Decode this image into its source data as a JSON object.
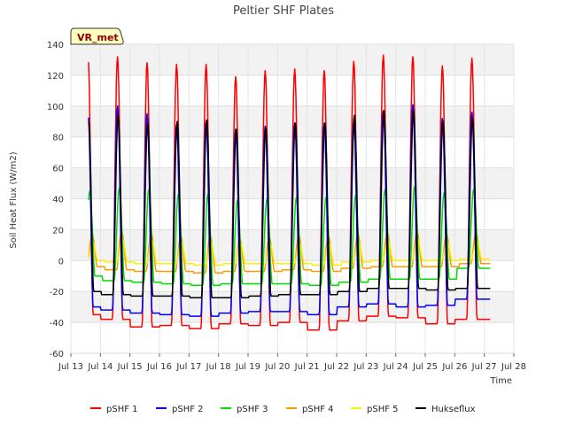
{
  "chart_data": {
    "type": "line",
    "title": "Peltier SHF Plates",
    "xlabel": "Time",
    "ylabel": "Soil Heat Flux (W/m2)",
    "badge": "VR_met",
    "ylim": [
      -60,
      140
    ],
    "yticks": [
      -60,
      -40,
      -20,
      0,
      20,
      40,
      60,
      80,
      100,
      120,
      140
    ],
    "xlim": [
      13,
      28
    ],
    "xticks": [
      "Jul 13",
      "Jul 14",
      "Jul 15",
      "Jul 16",
      "Jul 17",
      "Jul 18",
      "Jul 19",
      "Jul 20",
      "Jul 21",
      "Jul 22",
      "Jul 23",
      "Jul 24",
      "Jul 25",
      "Jul 26",
      "Jul 27",
      "Jul 28"
    ],
    "x_unit": "day of July",
    "grid": true,
    "legend_position": "bottom",
    "day_peaks": [
      "Jul 13",
      "Jul 14",
      "Jul 15",
      "Jul 16",
      "Jul 17",
      "Jul 18",
      "Jul 19",
      "Jul 20",
      "Jul 21",
      "Jul 22",
      "Jul 23",
      "Jul 24",
      "Jul 25",
      "Jul 26"
    ],
    "series": [
      {
        "name": "pSHF 1",
        "color": "#ff0000",
        "max": [
          133,
          132,
          128,
          127,
          127,
          119,
          123,
          124,
          123,
          129,
          133,
          132,
          126,
          131
        ],
        "min": [
          -35,
          -38,
          -43,
          -42,
          -44,
          -41,
          -42,
          -40,
          -45,
          -39,
          -36,
          -37,
          -41,
          -38
        ]
      },
      {
        "name": "pSHF 2",
        "color": "#0000ff",
        "max": [
          96,
          100,
          95,
          88,
          90,
          85,
          87,
          89,
          89,
          90,
          97,
          101,
          92,
          96
        ],
        "min": [
          -30,
          -32,
          -34,
          -35,
          -36,
          -34,
          -33,
          -33,
          -35,
          -30,
          -28,
          -30,
          -29,
          -25
        ]
      },
      {
        "name": "pSHF 3",
        "color": "#00dd00",
        "max": [
          45,
          47,
          46,
          43,
          43,
          39,
          40,
          41,
          41,
          42,
          46,
          48,
          44,
          46
        ],
        "min": [
          -10,
          -13,
          -14,
          -15,
          -16,
          -15,
          -15,
          -15,
          -16,
          -14,
          -12,
          -12,
          -12,
          -5
        ]
      },
      {
        "name": "pSHF 4",
        "color": "#ff9900",
        "max": [
          17,
          19,
          18,
          16,
          16,
          14,
          15,
          16,
          16,
          17,
          18,
          19,
          17,
          18
        ],
        "min": [
          -4,
          -6,
          -7,
          -7,
          -8,
          -7,
          -7,
          -6,
          -7,
          -5,
          -4,
          -4,
          -4,
          -2
        ]
      },
      {
        "name": "pSHF 5",
        "color": "#ffee00",
        "max": [
          12,
          14,
          13,
          12,
          12,
          11,
          11,
          11,
          11,
          12,
          13,
          14,
          12,
          13
        ],
        "min": [
          0,
          -1,
          -2,
          -2,
          -3,
          -2,
          -2,
          -2,
          -3,
          -1,
          0,
          0,
          0,
          1
        ]
      },
      {
        "name": "Hukseflux",
        "color": "#000000",
        "max": [
          90,
          94,
          89,
          90,
          91,
          85,
          86,
          89,
          89,
          94,
          97,
          97,
          90,
          92
        ],
        "min": [
          -20,
          -22,
          -23,
          -23,
          -24,
          -24,
          -23,
          -22,
          -22,
          -20,
          -18,
          -18,
          -19,
          -18
        ]
      }
    ]
  }
}
